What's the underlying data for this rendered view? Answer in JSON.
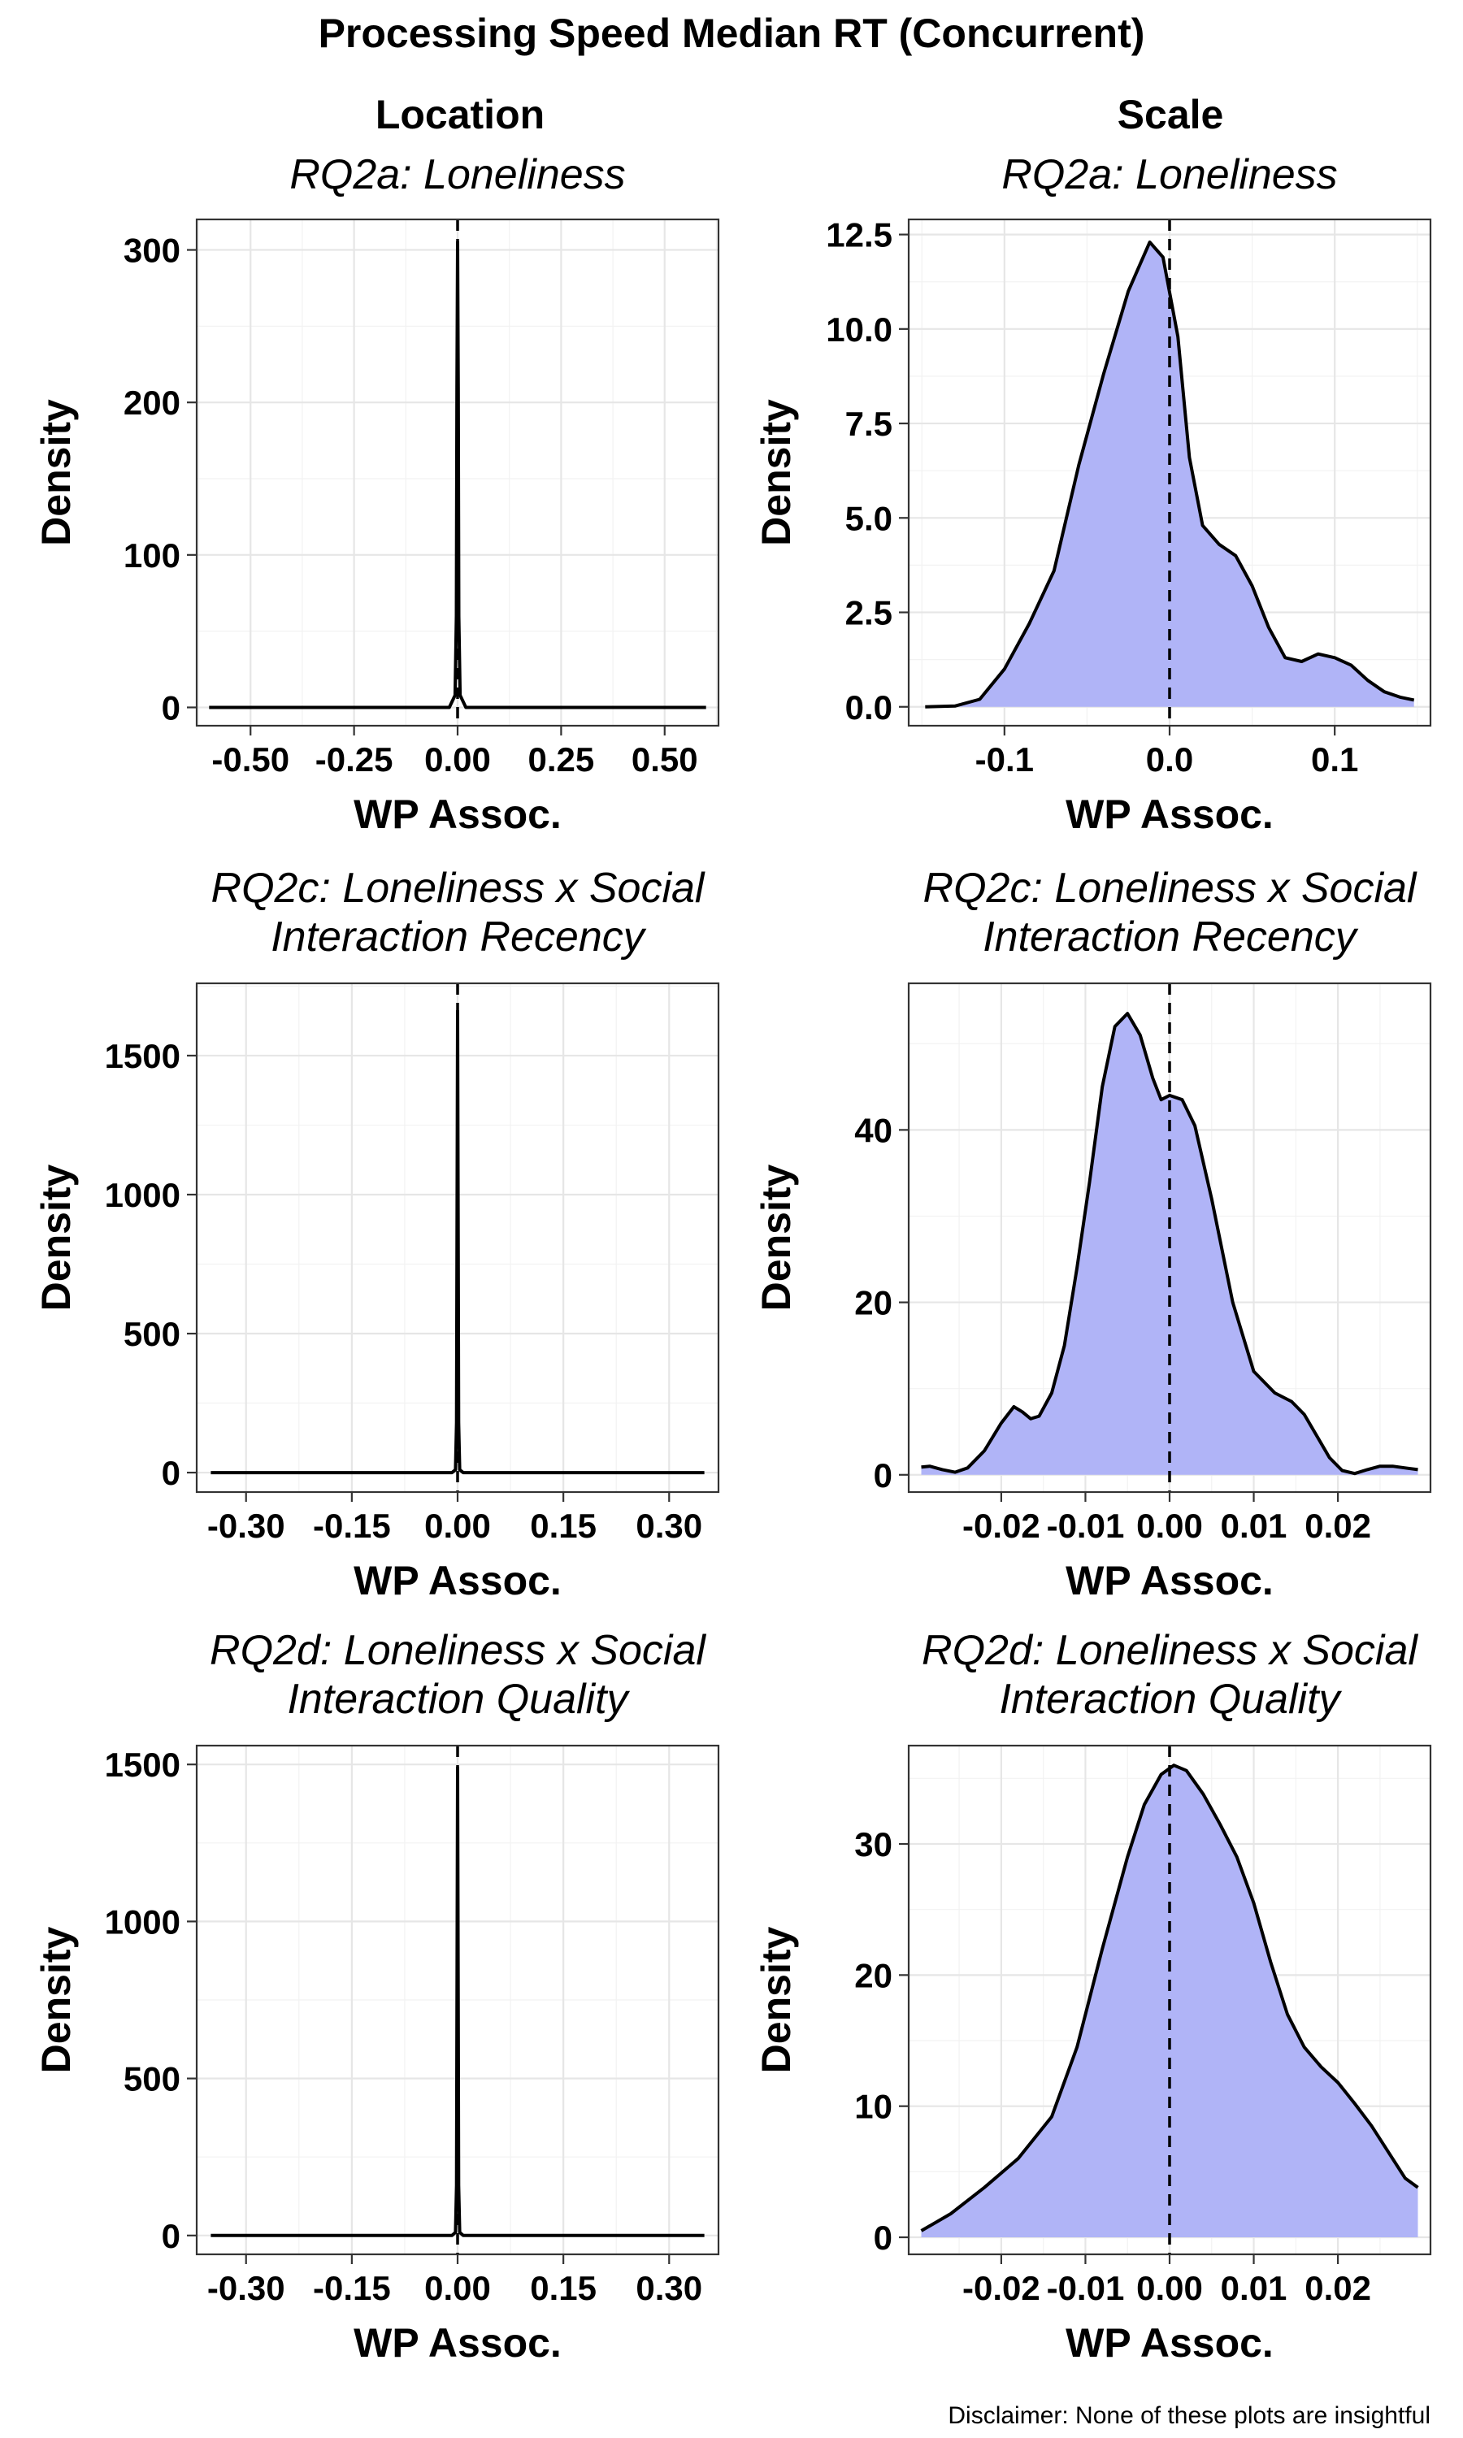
{
  "figure": {
    "title": "Processing Speed Median RT (Concurrent)",
    "columns": [
      "Location",
      "Scale"
    ],
    "disclaimer": "Disclaimer: None of these plots are insightful"
  },
  "chart_data": [
    {
      "type": "area",
      "column": "Location",
      "title": "RQ2a: Loneliness",
      "xlabel": "WP Assoc.",
      "ylabel": "Density",
      "filled": false,
      "xlim": [
        -0.63,
        0.63
      ],
      "ylim": [
        -12,
        320
      ],
      "xticks": [
        -0.5,
        -0.25,
        0,
        0.25,
        0.5
      ],
      "xtick_labels": [
        "-0.50",
        "-0.25",
        "0.00",
        "0.25",
        "0.50"
      ],
      "yticks": [
        0,
        100,
        200,
        300
      ],
      "ytick_labels": [
        "0",
        "100",
        "200",
        "300"
      ],
      "reference_line_x": 0,
      "x": [
        -0.6,
        -0.02,
        -0.006,
        -0.003,
        -0.0015,
        0,
        0.0015,
        0.003,
        0.006,
        0.02,
        0.6
      ],
      "y": [
        0,
        0,
        8,
        60,
        210,
        305,
        210,
        60,
        8,
        0,
        0
      ]
    },
    {
      "type": "area",
      "column": "Scale",
      "title": "RQ2a: Loneliness",
      "xlabel": "WP Assoc.",
      "ylabel": "Density",
      "filled": true,
      "xlim": [
        -0.158,
        0.158
      ],
      "ylim": [
        -0.5,
        12.9
      ],
      "xticks": [
        -0.1,
        0,
        0.1
      ],
      "xtick_labels": [
        "-0.1",
        "0.0",
        "0.1"
      ],
      "yticks": [
        0,
        2.5,
        5,
        7.5,
        10,
        12.5
      ],
      "ytick_labels": [
        "0.0",
        "2.5",
        "5.0",
        "7.5",
        "10.0",
        "12.5"
      ],
      "reference_line_x": 0,
      "x": [
        -0.148,
        -0.13,
        -0.115,
        -0.1,
        -0.085,
        -0.07,
        -0.055,
        -0.04,
        -0.025,
        -0.012,
        -0.004,
        0.005,
        0.012,
        0.02,
        0.03,
        0.04,
        0.05,
        0.06,
        0.07,
        0.08,
        0.09,
        0.1,
        0.11,
        0.12,
        0.13,
        0.14,
        0.148
      ],
      "y": [
        0,
        0.02,
        0.2,
        1.0,
        2.2,
        3.6,
        6.4,
        8.8,
        11.0,
        12.3,
        11.9,
        9.8,
        6.6,
        4.8,
        4.3,
        4.0,
        3.2,
        2.1,
        1.3,
        1.2,
        1.4,
        1.3,
        1.1,
        0.7,
        0.4,
        0.25,
        0.18
      ]
    },
    {
      "type": "area",
      "column": "Location",
      "title": "RQ2c: Loneliness x Social Interaction Recency",
      "xlabel": "WP Assoc.",
      "ylabel": "Density",
      "filled": false,
      "xlim": [
        -0.37,
        0.37
      ],
      "ylim": [
        -70,
        1760
      ],
      "xticks": [
        -0.3,
        -0.15,
        0,
        0.15,
        0.3
      ],
      "xtick_labels": [
        "-0.30",
        "-0.15",
        "0.00",
        "0.15",
        "0.30"
      ],
      "yticks": [
        0,
        500,
        1000,
        1500
      ],
      "ytick_labels": [
        "0",
        "500",
        "1000",
        "1500"
      ],
      "reference_line_x": 0,
      "x": [
        -0.35,
        -0.008,
        -0.003,
        -0.0015,
        -0.0006,
        0,
        0.0006,
        0.0015,
        0.003,
        0.008,
        0.35
      ],
      "y": [
        0,
        0,
        10,
        180,
        1100,
        1660,
        1100,
        180,
        10,
        0,
        0
      ]
    },
    {
      "type": "area",
      "column": "Scale",
      "title": "RQ2c: Loneliness x Social Interaction Recency",
      "xlabel": "WP Assoc.",
      "ylabel": "Density",
      "filled": true,
      "xlim": [
        -0.031,
        0.031
      ],
      "ylim": [
        -2,
        57
      ],
      "xticks": [
        -0.02,
        -0.01,
        0,
        0.01,
        0.02
      ],
      "xtick_labels": [
        "-0.02",
        "-0.01",
        "0.00",
        "0.01",
        "0.02"
      ],
      "yticks": [
        0,
        20,
        40
      ],
      "ytick_labels": [
        "0",
        "20",
        "40"
      ],
      "reference_line_x": 0,
      "x": [
        -0.0295,
        -0.0285,
        -0.027,
        -0.0255,
        -0.024,
        -0.022,
        -0.02,
        -0.0185,
        -0.0175,
        -0.0165,
        -0.0155,
        -0.014,
        -0.0125,
        -0.011,
        -0.0095,
        -0.008,
        -0.0065,
        -0.005,
        -0.0035,
        -0.002,
        -0.001,
        0,
        0.0015,
        0.003,
        0.005,
        0.0075,
        0.01,
        0.0125,
        0.0145,
        0.016,
        0.0175,
        0.019,
        0.0205,
        0.022,
        0.0235,
        0.025,
        0.0265,
        0.028,
        0.0295
      ],
      "y": [
        0.9,
        1.0,
        0.6,
        0.3,
        0.8,
        2.8,
        6.0,
        7.9,
        7.3,
        6.5,
        6.8,
        9.5,
        15.0,
        24.0,
        34.0,
        45.0,
        52.0,
        53.5,
        51.0,
        46.0,
        43.5,
        44.0,
        43.5,
        40.5,
        32.0,
        20.0,
        12.0,
        9.5,
        8.5,
        7.0,
        4.5,
        2.0,
        0.5,
        0.15,
        0.6,
        1.0,
        1.0,
        0.8,
        0.6
      ]
    },
    {
      "type": "area",
      "column": "Location",
      "title": "RQ2d: Loneliness x Social Interaction Quality",
      "xlabel": "WP Assoc.",
      "ylabel": "Density",
      "filled": false,
      "xlim": [
        -0.37,
        0.37
      ],
      "ylim": [
        -60,
        1560
      ],
      "xticks": [
        -0.3,
        -0.15,
        0,
        0.15,
        0.3
      ],
      "xtick_labels": [
        "-0.30",
        "-0.15",
        "0.00",
        "0.15",
        "0.30"
      ],
      "yticks": [
        0,
        500,
        1000,
        1500
      ],
      "ytick_labels": [
        "0",
        "500",
        "1000",
        "1500"
      ],
      "reference_line_x": 0,
      "x": [
        -0.35,
        -0.008,
        -0.003,
        -0.0015,
        -0.0006,
        0,
        0.0006,
        0.0015,
        0.003,
        0.008,
        0.35
      ],
      "y": [
        0,
        0,
        10,
        160,
        1000,
        1490,
        1000,
        160,
        10,
        0,
        0
      ]
    },
    {
      "type": "area",
      "column": "Scale",
      "title": "RQ2d: Loneliness x Social Interaction Quality",
      "xlabel": "WP Assoc.",
      "ylabel": "Density",
      "filled": true,
      "xlim": [
        -0.031,
        0.031
      ],
      "ylim": [
        -1.3,
        37.5
      ],
      "xticks": [
        -0.02,
        -0.01,
        0,
        0.01,
        0.02
      ],
      "xtick_labels": [
        "-0.02",
        "-0.01",
        "0.00",
        "0.01",
        "0.02"
      ],
      "yticks": [
        0,
        10,
        20,
        30
      ],
      "ytick_labels": [
        "0",
        "10",
        "20",
        "30"
      ],
      "reference_line_x": 0,
      "x": [
        -0.0295,
        -0.026,
        -0.022,
        -0.018,
        -0.014,
        -0.011,
        -0.008,
        -0.005,
        -0.003,
        -0.001,
        0.0005,
        0.002,
        0.004,
        0.006,
        0.008,
        0.01,
        0.012,
        0.014,
        0.016,
        0.018,
        0.02,
        0.022,
        0.024,
        0.026,
        0.028,
        0.0295
      ],
      "y": [
        0.5,
        1.8,
        3.8,
        6.0,
        9.2,
        14.5,
        22.0,
        29.0,
        33.0,
        35.3,
        36.0,
        35.6,
        33.8,
        31.5,
        29.0,
        25.5,
        21.0,
        17.0,
        14.5,
        13.0,
        11.8,
        10.2,
        8.5,
        6.5,
        4.5,
        3.8
      ]
    }
  ]
}
